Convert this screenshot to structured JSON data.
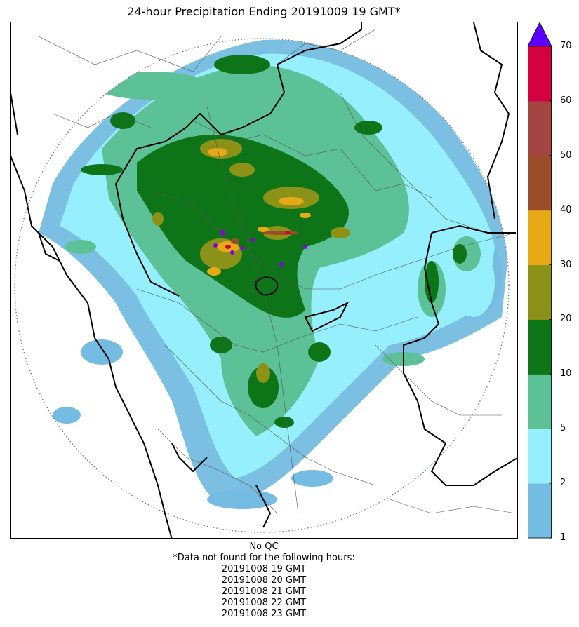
{
  "title": "24-hour Precipitation Ending 20191009 19 GMT*",
  "colorbar": {
    "ticks": [
      "1",
      "2",
      "5",
      "10",
      "20",
      "30",
      "40",
      "50",
      "60",
      "70"
    ],
    "bins": [
      {
        "from": 1,
        "to": 2,
        "color": "#74bce2"
      },
      {
        "from": 2,
        "to": 5,
        "color": "#95effc"
      },
      {
        "from": 5,
        "to": 10,
        "color": "#5cc196"
      },
      {
        "from": 10,
        "to": 20,
        "color": "#0e7418"
      },
      {
        "from": 20,
        "to": 30,
        "color": "#8c9118"
      },
      {
        "from": 30,
        "to": 40,
        "color": "#e8a917"
      },
      {
        "from": 40,
        "to": 50,
        "color": "#9b4c28"
      },
      {
        "from": 50,
        "to": 60,
        "color": "#a34540"
      },
      {
        "from": 60,
        "to": 70,
        "color": "#d30042"
      }
    ],
    "over_color": "#5b00ff"
  },
  "footer": {
    "qc": "No QC",
    "note": "*Data not found for the following hours:",
    "hours": [
      "20191008 19 GMT",
      "20191008 20 GMT",
      "20191008 21 GMT",
      "20191008 22 GMT",
      "20191008 23 GMT"
    ]
  }
}
